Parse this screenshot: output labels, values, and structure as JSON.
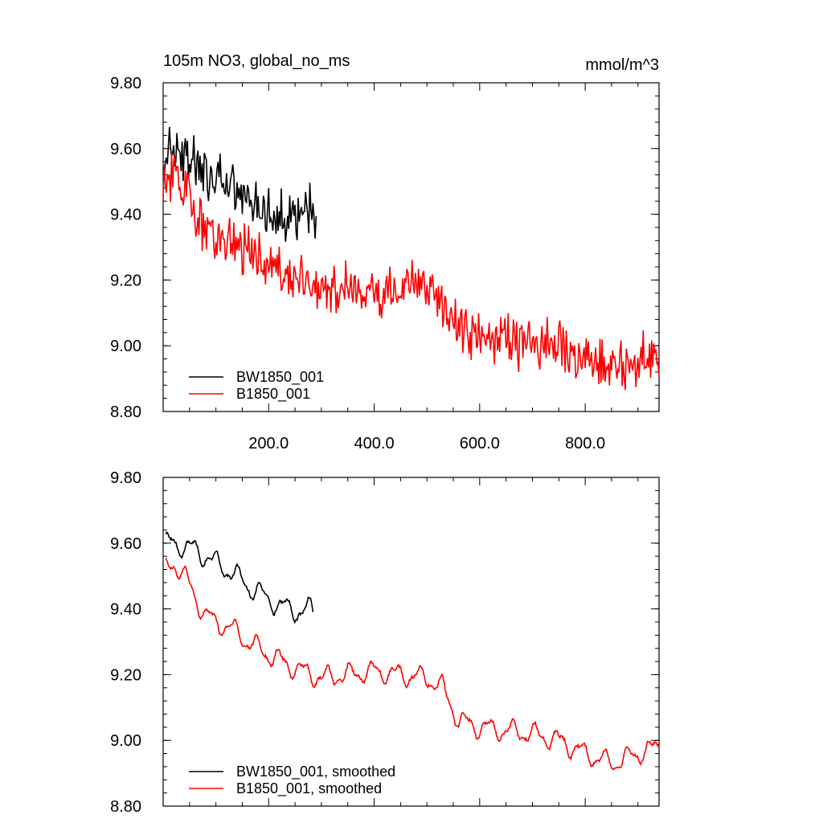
{
  "colors": {
    "black_series": "#000000",
    "red_series": "#ff0000",
    "background": "#ffffff"
  },
  "top": {
    "title_left": "105m NO3, global_no_ms",
    "title_right": "mmol/m^3"
  },
  "chart_data": [
    {
      "type": "line",
      "title": "105m NO3, global_no_ms",
      "units": "mmol/m^3",
      "xlim": [
        0,
        940
      ],
      "ylim": [
        8.8,
        9.8
      ],
      "x_tick_values": [
        200,
        400,
        600,
        800
      ],
      "x_tick_labels": [
        "200.0",
        "400.0",
        "600.0",
        "800.0"
      ],
      "y_tick_values": [
        8.8,
        9.0,
        9.2,
        9.4,
        9.6,
        9.8
      ],
      "y_tick_labels": [
        "8.80",
        "9.00",
        "9.20",
        "9.40",
        "9.60",
        "9.80"
      ],
      "legend_position": "bottom-left",
      "noise_amp": 0.12,
      "series": [
        {
          "name": "BW1850_001",
          "color": "#000000",
          "x": [
            0,
            10,
            25,
            40,
            60,
            80,
            100,
            120,
            140,
            160,
            180,
            200,
            220,
            240,
            260,
            280,
            290
          ],
          "y": [
            9.55,
            9.62,
            9.6,
            9.58,
            9.55,
            9.52,
            9.5,
            9.48,
            9.46,
            9.44,
            9.43,
            9.42,
            9.4,
            9.38,
            9.4,
            9.42,
            9.36
          ]
        },
        {
          "name": "B1850_001",
          "color": "#ff0000",
          "x": [
            0,
            20,
            50,
            80,
            120,
            160,
            200,
            250,
            300,
            350,
            400,
            450,
            500,
            530,
            560,
            600,
            650,
            700,
            750,
            800,
            850,
            900,
            940
          ],
          "y": [
            9.5,
            9.52,
            9.45,
            9.35,
            9.31,
            9.29,
            9.25,
            9.19,
            9.18,
            9.17,
            9.16,
            9.17,
            9.18,
            9.13,
            9.05,
            9.03,
            9.02,
            9.01,
            8.99,
            8.95,
            8.94,
            8.96,
            8.98
          ]
        }
      ]
    },
    {
      "type": "line",
      "xlim": [
        0,
        940
      ],
      "ylim": [
        8.8,
        9.8
      ],
      "y_tick_values": [
        8.8,
        9.0,
        9.2,
        9.4,
        9.6,
        9.8
      ],
      "y_tick_labels": [
        "8.80",
        "9.00",
        "9.20",
        "9.40",
        "9.60",
        "9.80"
      ],
      "legend_position": "bottom-left",
      "noise_amp": 0.035,
      "series": [
        {
          "name": "BW1850_001, smoothed",
          "color": "#000000",
          "x": [
            5,
            20,
            40,
            60,
            80,
            100,
            120,
            140,
            160,
            180,
            200,
            220,
            240,
            260,
            280,
            285
          ],
          "y": [
            9.6,
            9.6,
            9.59,
            9.58,
            9.56,
            9.54,
            9.52,
            9.5,
            9.47,
            9.45,
            9.43,
            9.41,
            9.4,
            9.39,
            9.4,
            9.39
          ]
        },
        {
          "name": "B1850_001, smoothed",
          "color": "#ff0000",
          "x": [
            5,
            20,
            40,
            60,
            80,
            100,
            130,
            160,
            200,
            250,
            300,
            350,
            400,
            450,
            500,
            530,
            560,
            600,
            650,
            700,
            750,
            800,
            850,
            900,
            940
          ],
          "y": [
            9.53,
            9.54,
            9.5,
            9.44,
            9.38,
            9.36,
            9.34,
            9.3,
            9.26,
            9.22,
            9.19,
            9.2,
            9.21,
            9.2,
            9.19,
            9.16,
            9.06,
            9.04,
            9.03,
            9.02,
            9.0,
            8.96,
            8.93,
            8.96,
            8.98
          ]
        }
      ]
    }
  ]
}
